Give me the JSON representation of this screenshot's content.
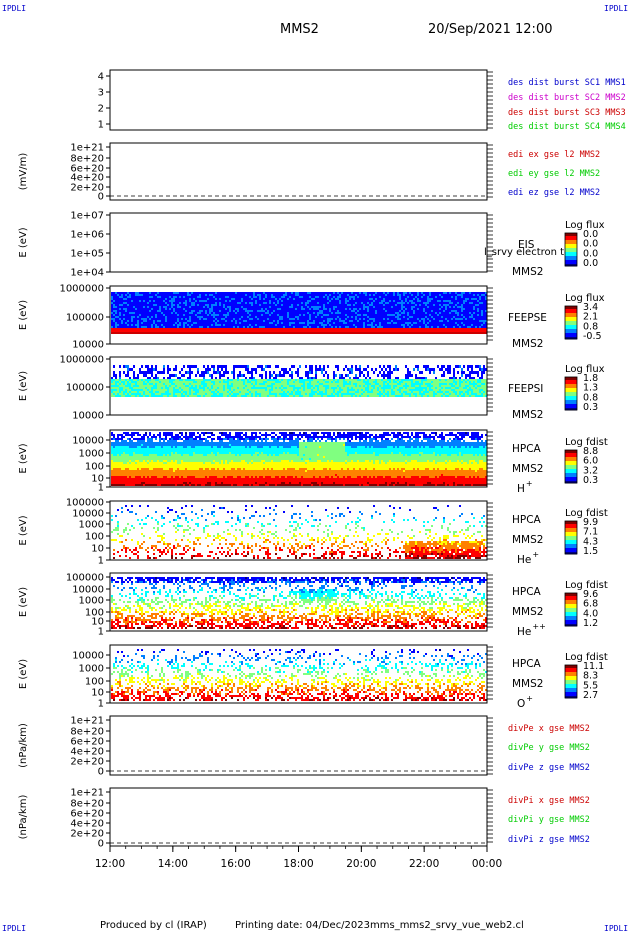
{
  "header": {
    "corner_label": "IPDLI",
    "spacecraft": "MMS2",
    "datetime": "20/Sep/2021 12:00"
  },
  "footer": {
    "produced_by": "Produced by cl (IRAP)",
    "printing_date": "Printing date: 04/Dec/2023",
    "file_name": "mms_mms2_srvy_vue_web2.cl"
  },
  "colors": {
    "blue": "#0000cc",
    "magenta": "#cc00cc",
    "red": "#cc0000",
    "green": "#00cc00",
    "spectrogram_scale": [
      "#000080",
      "#0000ff",
      "#0080ff",
      "#00ffff",
      "#80ff80",
      "#ffff00",
      "#ff8000",
      "#ff0000",
      "#800000"
    ]
  },
  "chart_data": {
    "type": "stacked-time-series",
    "x_ticks": [
      "12:00",
      "14:00",
      "16:00",
      "18:00",
      "20:00",
      "22:00",
      "00:00"
    ],
    "x_range_hours": [
      12,
      24
    ],
    "panels": [
      {
        "id": "des-dist",
        "ytick_labels": [
          "4",
          "3",
          "2",
          "1"
        ],
        "yrange": [
          0.7,
          4.3
        ],
        "ylabel": "",
        "legend": [
          {
            "text": "des dist burst SC1 MMS1",
            "color": "#0000cc"
          },
          {
            "text": "des dist burst SC2 MMS2",
            "color": "#cc00cc"
          },
          {
            "text": "des dist burst SC3 MMS3",
            "color": "#cc0000"
          },
          {
            "text": "des dist burst SC4 MMS4",
            "color": "#00cc00"
          }
        ]
      },
      {
        "id": "edi",
        "ytick_labels": [
          "1e+21",
          "8e+20",
          "6e+20",
          "4e+20",
          "2e+20",
          "0"
        ],
        "ylabel": "(mV/m)",
        "legend": [
          {
            "text": "edi ex gse l2 MMS2",
            "color": "#cc0000"
          },
          {
            "text": "edi ey gse l2 MMS2",
            "color": "#00cc00"
          },
          {
            "text": "edi ez gse l2 MMS2",
            "color": "#0000cc"
          }
        ]
      },
      {
        "id": "eis",
        "ytick_labels": [
          "1e+07",
          "1e+06",
          "1e+05",
          "1e+04"
        ],
        "ylabel": "E (eV)",
        "instrument": [
          "EIS",
          "MMS2"
        ],
        "overlay_text": "l_srvy electron to",
        "colorbar": {
          "title": "Log flux",
          "labels": [
            "0.0",
            "0.0",
            "0.0",
            "0.0"
          ]
        }
      },
      {
        "id": "feepse",
        "ytick_labels": [
          "1000000",
          "100000",
          "10000"
        ],
        "ylabel": "E (eV)",
        "instrument": [
          "FEEPSE",
          "MMS2"
        ],
        "colorbar": {
          "title": "Log flux",
          "labels": [
            "3.4",
            "2.1",
            "0.8",
            "-0.5"
          ]
        }
      },
      {
        "id": "feepsi",
        "ytick_labels": [
          "1000000",
          "100000",
          "10000"
        ],
        "ylabel": "E (eV)",
        "instrument": [
          "FEEPSI",
          "MMS2"
        ],
        "colorbar": {
          "title": "Log flux",
          "labels": [
            "1.8",
            "1.3",
            "0.8",
            "0.3"
          ]
        }
      },
      {
        "id": "hpca-h",
        "ytick_labels": [
          "10000",
          "1000",
          "100",
          "10",
          "1"
        ],
        "ylabel": "E (eV)",
        "instrument": [
          "HPCA",
          "MMS2"
        ],
        "species": "H",
        "charge": "+",
        "colorbar": {
          "title": "Log fdist",
          "labels": [
            "8.8",
            "6.0",
            "3.2",
            "0.3"
          ]
        }
      },
      {
        "id": "hpca-he",
        "ytick_labels": [
          "100000",
          "10000",
          "1000",
          "100",
          "10",
          "1"
        ],
        "ylabel": "E (eV)",
        "instrument": [
          "HPCA",
          "MMS2"
        ],
        "species": "He",
        "charge": "+",
        "colorbar": {
          "title": "Log fdist",
          "labels": [
            "9.9",
            "7.1",
            "4.3",
            "1.5"
          ]
        }
      },
      {
        "id": "hpca-hepp",
        "ytick_labels": [
          "100000",
          "10000",
          "1000",
          "100",
          "10",
          "1"
        ],
        "ylabel": "E (eV)",
        "instrument": [
          "HPCA",
          "MMS2"
        ],
        "species": "He",
        "charge": "++",
        "colorbar": {
          "title": "Log fdist",
          "labels": [
            "9.6",
            "6.8",
            "4.0",
            "1.2"
          ]
        }
      },
      {
        "id": "hpca-o",
        "ytick_labels": [
          "10000",
          "1000",
          "100",
          "10",
          "1"
        ],
        "ylabel": "E (eV)",
        "instrument": [
          "HPCA",
          "MMS2"
        ],
        "species": "O",
        "charge": "+",
        "colorbar": {
          "title": "Log fdist",
          "labels": [
            "11.1",
            "8.3",
            "5.5",
            "2.7"
          ]
        }
      },
      {
        "id": "divpe",
        "ytick_labels": [
          "1e+21",
          "8e+20",
          "6e+20",
          "4e+20",
          "2e+20",
          "0"
        ],
        "ylabel": "(nPa/km)",
        "legend": [
          {
            "text": "divPe x gse MMS2",
            "color": "#cc0000"
          },
          {
            "text": "divPe y gse MMS2",
            "color": "#00cc00"
          },
          {
            "text": "divPe z gse MMS2",
            "color": "#0000cc"
          }
        ]
      },
      {
        "id": "divpi",
        "ytick_labels": [
          "1e+21",
          "8e+20",
          "6e+20",
          "4e+20",
          "2e+20",
          "0"
        ],
        "ylabel": "(nPa/km)",
        "legend": [
          {
            "text": "divPi x gse MMS2",
            "color": "#cc0000"
          },
          {
            "text": "divPi y gse MMS2",
            "color": "#00cc00"
          },
          {
            "text": "divPi z gse MMS2",
            "color": "#0000cc"
          }
        ]
      }
    ]
  }
}
